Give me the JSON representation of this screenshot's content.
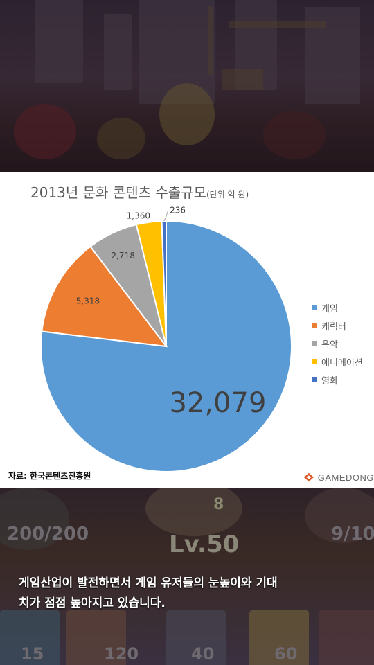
{
  "chart_data": {
    "type": "pie",
    "title": "2013년 문화 콘텐츠 수출규모",
    "unit": "(단위 억 원)",
    "categories": [
      "게임",
      "캐릭터",
      "음악",
      "애니메이션",
      "영화"
    ],
    "values": [
      32079,
      5318,
      2718,
      1360,
      236
    ],
    "value_labels": [
      "32,079",
      "5,318",
      "2,718",
      "1,360",
      "236"
    ],
    "colors": [
      "#5B9BD5",
      "#ED7D31",
      "#A5A5A5",
      "#FFC000",
      "#4472C4"
    ],
    "start_angle_deg": 0,
    "direction": "clockwise",
    "legend_position": "right"
  },
  "source_note": "자료: 한국콘텐츠진흥원",
  "watermark": "GAMEDONG",
  "hud": {
    "hp": "200/200",
    "level": "Lv.50",
    "right_counter": "9/10",
    "badge": "8",
    "costs": [
      "15",
      "120",
      "40",
      "60"
    ]
  },
  "caption": {
    "line1": "게임산업이 발전하면서 게임 유저들의 눈높이와 기대",
    "line2": "치가 점점 높아지고 있습니다."
  }
}
